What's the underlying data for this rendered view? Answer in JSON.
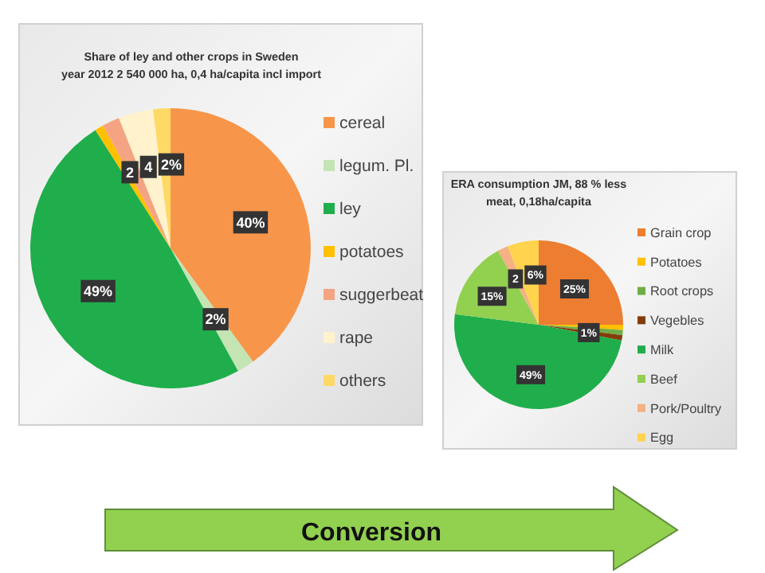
{
  "chart_data": [
    {
      "type": "pie",
      "title": "Share of ley and other crops in Sweden\nyear 2012 2 540 000 ha, 0,4 ha/capita incl import",
      "categories": [
        "cereal",
        "legum. Pl.",
        "ley",
        "potatoes",
        "suggerbeat",
        "rape",
        "others"
      ],
      "values": [
        40,
        2,
        49,
        1,
        2,
        4,
        2
      ],
      "colors": [
        "#f7964a",
        "#c5e4b4",
        "#1fae4b",
        "#ffc000",
        "#f4a482",
        "#fff2cc",
        "#ffd966"
      ],
      "value_labels": [
        "40%",
        "2%",
        "49%",
        null,
        "2",
        "4",
        "2%"
      ],
      "legend": "right"
    },
    {
      "type": "pie",
      "title": "ERA consumption JM,  88 % less\nmeat, 0,18ha/capita",
      "categories": [
        "Grain crop",
        "Potatoes",
        "Root crops",
        "Vegebles",
        "Milk",
        "Beef",
        "Pork/Poultry",
        "Egg"
      ],
      "values": [
        25,
        1,
        1,
        1,
        49,
        15,
        2,
        6
      ],
      "colors": [
        "#ed7d31",
        "#ffc000",
        "#70ad47",
        "#843c0c",
        "#1fae4b",
        "#92d050",
        "#f4b183",
        "#ffd34d"
      ],
      "value_labels": [
        "25%",
        null,
        null,
        "1%",
        "49%",
        "15%",
        "2",
        "6%"
      ],
      "legend": "right"
    },
    {
      "type": "other",
      "annotations": [
        "Conversion"
      ]
    }
  ]
}
